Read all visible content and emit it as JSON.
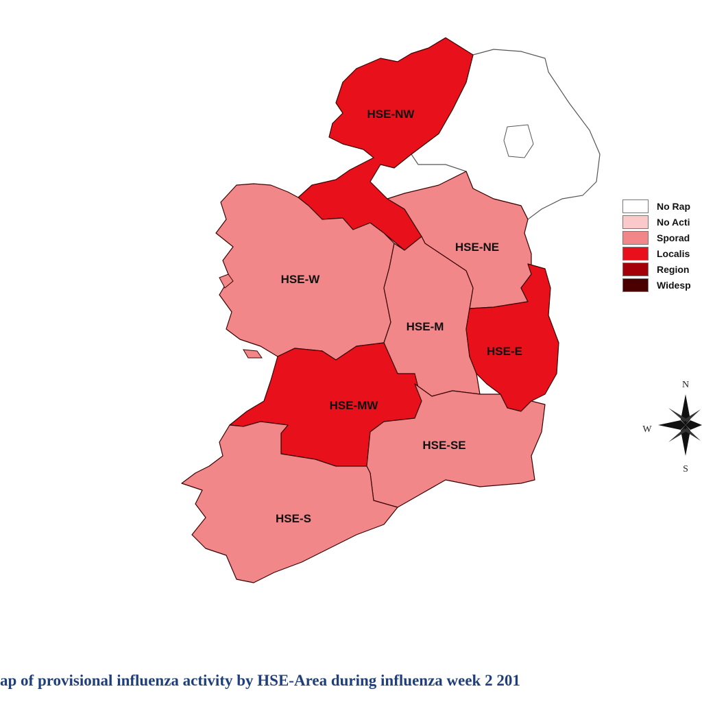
{
  "map": {
    "regions": [
      {
        "id": "HSE-NW",
        "label": "HSE-NW",
        "activity": "Localised"
      },
      {
        "id": "HSE-W",
        "label": "HSE-W",
        "activity": "Sporadic"
      },
      {
        "id": "HSE-NE",
        "label": "HSE-NE",
        "activity": "Sporadic"
      },
      {
        "id": "HSE-M",
        "label": "HSE-M",
        "activity": "Sporadic"
      },
      {
        "id": "HSE-E",
        "label": "HSE-E",
        "activity": "Localised"
      },
      {
        "id": "HSE-MW",
        "label": "HSE-MW",
        "activity": "Localised"
      },
      {
        "id": "HSE-SE",
        "label": "HSE-SE",
        "activity": "Sporadic"
      },
      {
        "id": "HSE-S",
        "label": "HSE-S",
        "activity": "Sporadic"
      }
    ],
    "northern_ireland": {
      "activity": "none"
    }
  },
  "legend": {
    "items": [
      {
        "label": "No Rap",
        "color": "#ffffff"
      },
      {
        "label": "No Acti",
        "color": "#fbc9c9"
      },
      {
        "label": "Sporad",
        "color": "#f2878a"
      },
      {
        "label": "Localis",
        "color": "#e8101a"
      },
      {
        "label": "Region",
        "color": "#a3000a"
      },
      {
        "label": "Widesp",
        "color": "#4a0000"
      }
    ]
  },
  "activity_colors": {
    "Sporadic": "#f2878a",
    "Localised": "#e8101a"
  },
  "compass": {
    "n": "N",
    "s": "S",
    "w": "W"
  },
  "caption": "ap of provisional influenza activity by HSE-Area during influenza week 2 201"
}
